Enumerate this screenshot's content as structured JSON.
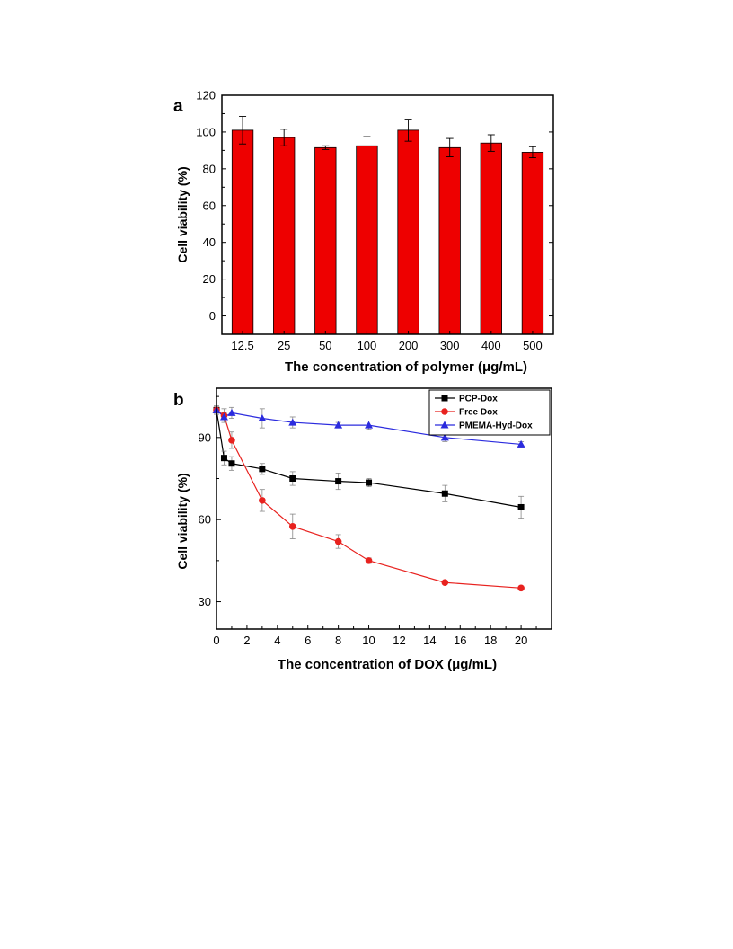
{
  "chart_data": [
    {
      "panel": "a",
      "type": "bar",
      "categories": [
        "12.5",
        "25",
        "50",
        "100",
        "200",
        "300",
        "400",
        "500"
      ],
      "values": [
        101,
        97,
        91.5,
        92.5,
        101,
        91.5,
        94,
        89
      ],
      "errors": [
        7.5,
        4.5,
        1,
        5,
        6,
        5,
        4.5,
        3
      ],
      "bar_color": "#ee0000",
      "xlabel": "The concentration of polymer (μg/mL)",
      "ylabel": "Cell viability (%)",
      "ylim": [
        -10,
        120
      ],
      "yticks": [
        0,
        20,
        40,
        60,
        80,
        100,
        120
      ],
      "grid": false
    },
    {
      "panel": "b",
      "type": "line",
      "x": [
        0,
        0.5,
        1,
        3,
        5,
        8,
        10,
        15,
        20
      ],
      "series": [
        {
          "name": "PCP-Dox",
          "color": "#000000",
          "marker": "square",
          "values": [
            100,
            82.5,
            80.5,
            78.5,
            75,
            74,
            73.5,
            69.5,
            64.5
          ],
          "errors": [
            1.5,
            2.5,
            2.5,
            2,
            2.5,
            3,
            1.5,
            3,
            4
          ]
        },
        {
          "name": "Free Dox",
          "color": "#e8221f",
          "marker": "circle",
          "values": [
            100,
            98,
            89,
            67,
            57.5,
            52,
            45,
            37,
            35
          ],
          "errors": [
            1.5,
            2.5,
            3,
            4,
            4.5,
            2.5,
            1,
            0.5,
            0.5
          ]
        },
        {
          "name": "PMEMA-Hyd-Dox",
          "color": "#2b2bde",
          "marker": "triangle",
          "values": [
            100,
            97.5,
            99,
            97,
            95.5,
            94.5,
            94.5,
            90,
            87.5
          ],
          "errors": [
            1.5,
            1.5,
            2,
            3.5,
            2,
            1,
            1.5,
            1.5,
            1
          ]
        }
      ],
      "xlabel": "The concentration of DOX (μg/mL)",
      "ylabel": "Cell viability (%)",
      "xlim": [
        0,
        22
      ],
      "ylim": [
        20,
        108
      ],
      "xticks": [
        0,
        2,
        4,
        6,
        8,
        10,
        12,
        14,
        16,
        18,
        20
      ],
      "yticks": [
        30,
        60,
        90
      ],
      "legend_position": "top-right",
      "grid": false
    }
  ]
}
